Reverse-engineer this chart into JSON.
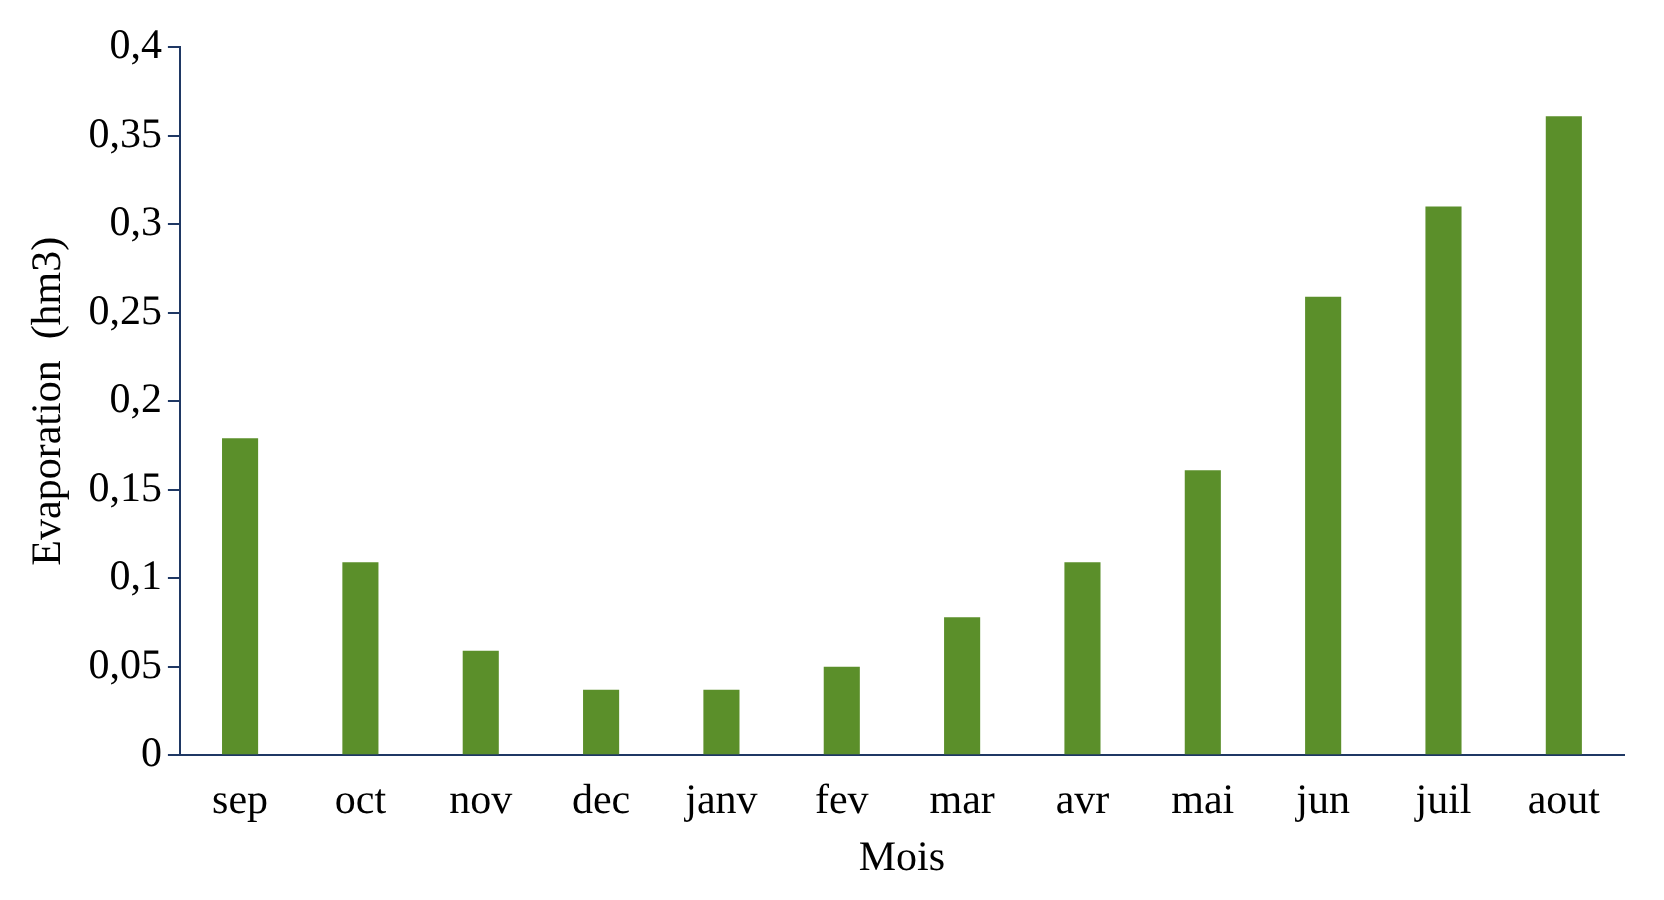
{
  "chart_data": {
    "type": "bar",
    "xlabel": "Mois",
    "ylabel": "Evaporation  (hm3)",
    "categories": [
      "sep",
      "oct",
      "nov",
      "dec",
      "janv",
      "fev",
      "mar",
      "avr",
      "mai",
      "jun",
      "juil",
      "aout"
    ],
    "values": [
      0.179,
      0.109,
      0.059,
      0.037,
      0.037,
      0.05,
      0.078,
      0.109,
      0.161,
      0.259,
      0.31,
      0.361
    ],
    "color": "#5b8f2a",
    "ylim": [
      0,
      0.4
    ],
    "yticks": [
      0,
      {
        "value": 0.05,
        "label": "0,05"
      },
      {
        "value": 0.1,
        "label": "0,1"
      },
      {
        "value": 0.15,
        "label": "0,15"
      },
      {
        "value": 0.2,
        "label": "0,2"
      },
      {
        "value": 0.25,
        "label": "0,25"
      },
      {
        "value": 0.3,
        "label": "0,3"
      },
      {
        "value": 0.35,
        "label": "0,35"
      },
      {
        "value": 0.4,
        "label": "0,4"
      }
    ],
    "grid": false,
    "legend": false
  }
}
